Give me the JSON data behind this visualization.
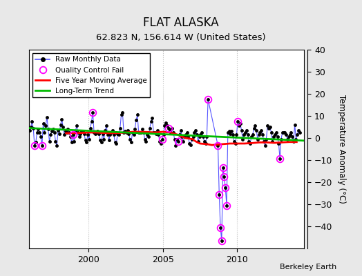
{
  "title": "FLAT ALASKA",
  "subtitle": "62.823 N, 156.614 W (United States)",
  "ylabel": "Temperature Anomaly (°C)",
  "attribution": "Berkeley Earth",
  "ylim": [
    -50,
    40
  ],
  "yticks": [
    -40,
    -30,
    -20,
    -10,
    0,
    10,
    20,
    30,
    40
  ],
  "xlim_start": 1996.0,
  "xlim_end": 2014.5,
  "xticks": [
    2000,
    2005,
    2010
  ],
  "bg_color": "#e8e8e8",
  "plot_bg_color": "#ffffff",
  "grid_color": "#bbbbbb",
  "raw_color": "#5555ff",
  "raw_marker_color": "#000000",
  "qc_color": "#ff00ff",
  "ma_color": "#ff0000",
  "trend_color": "#00bb00",
  "raw_monthly_data": [
    [
      1996.042,
      3.5
    ],
    [
      1996.125,
      5.0
    ],
    [
      1996.208,
      7.5
    ],
    [
      1996.292,
      4.5
    ],
    [
      1996.375,
      -3.5
    ],
    [
      1996.458,
      -2.0
    ],
    [
      1996.542,
      2.5
    ],
    [
      1996.625,
      4.0
    ],
    [
      1996.708,
      2.5
    ],
    [
      1996.792,
      0.5
    ],
    [
      1996.875,
      -3.5
    ],
    [
      1996.958,
      6.5
    ],
    [
      1997.042,
      2.5
    ],
    [
      1997.125,
      5.5
    ],
    [
      1997.208,
      9.5
    ],
    [
      1997.292,
      4.0
    ],
    [
      1997.375,
      -1.5
    ],
    [
      1997.458,
      1.5
    ],
    [
      1997.542,
      3.0
    ],
    [
      1997.625,
      4.0
    ],
    [
      1997.708,
      2.5
    ],
    [
      1997.792,
      -1.5
    ],
    [
      1997.875,
      -3.5
    ],
    [
      1997.958,
      3.5
    ],
    [
      1998.042,
      2.0
    ],
    [
      1998.125,
      6.0
    ],
    [
      1998.208,
      8.5
    ],
    [
      1998.292,
      5.0
    ],
    [
      1998.375,
      1.5
    ],
    [
      1998.458,
      3.0
    ],
    [
      1998.542,
      2.5
    ],
    [
      1998.625,
      4.0
    ],
    [
      1998.708,
      2.5
    ],
    [
      1998.792,
      0.5
    ],
    [
      1998.875,
      -2.0
    ],
    [
      1998.958,
      1.5
    ],
    [
      1999.042,
      -1.5
    ],
    [
      1999.125,
      3.0
    ],
    [
      1999.208,
      5.5
    ],
    [
      1999.292,
      2.5
    ],
    [
      1999.375,
      0.5
    ],
    [
      1999.458,
      2.0
    ],
    [
      1999.542,
      3.0
    ],
    [
      1999.625,
      3.0
    ],
    [
      1999.708,
      2.0
    ],
    [
      1999.792,
      -1.0
    ],
    [
      1999.875,
      -2.0
    ],
    [
      1999.958,
      1.5
    ],
    [
      2000.042,
      -0.5
    ],
    [
      2000.125,
      4.5
    ],
    [
      2000.208,
      7.5
    ],
    [
      2000.292,
      11.5
    ],
    [
      2000.375,
      2.5
    ],
    [
      2000.458,
      2.0
    ],
    [
      2000.542,
      2.5
    ],
    [
      2000.625,
      3.0
    ],
    [
      2000.708,
      2.0
    ],
    [
      2000.792,
      -1.0
    ],
    [
      2000.875,
      -2.0
    ],
    [
      2000.958,
      2.0
    ],
    [
      2001.042,
      -0.5
    ],
    [
      2001.125,
      3.5
    ],
    [
      2001.208,
      5.5
    ],
    [
      2001.292,
      1.5
    ],
    [
      2001.375,
      -1.0
    ],
    [
      2001.458,
      1.5
    ],
    [
      2001.542,
      2.5
    ],
    [
      2001.625,
      3.5
    ],
    [
      2001.708,
      1.5
    ],
    [
      2001.792,
      -2.0
    ],
    [
      2001.875,
      -2.5
    ],
    [
      2001.958,
      2.0
    ],
    [
      2002.042,
      1.5
    ],
    [
      2002.125,
      4.5
    ],
    [
      2002.208,
      10.5
    ],
    [
      2002.292,
      11.5
    ],
    [
      2002.375,
      2.5
    ],
    [
      2002.458,
      3.0
    ],
    [
      2002.542,
      2.5
    ],
    [
      2002.625,
      3.5
    ],
    [
      2002.708,
      2.0
    ],
    [
      2002.792,
      -0.5
    ],
    [
      2002.875,
      -2.0
    ],
    [
      2002.958,
      2.5
    ],
    [
      2003.042,
      1.5
    ],
    [
      2003.125,
      4.0
    ],
    [
      2003.208,
      8.0
    ],
    [
      2003.292,
      10.5
    ],
    [
      2003.375,
      2.5
    ],
    [
      2003.458,
      2.5
    ],
    [
      2003.542,
      2.5
    ],
    [
      2003.625,
      4.0
    ],
    [
      2003.708,
      2.5
    ],
    [
      2003.792,
      -0.5
    ],
    [
      2003.875,
      -1.5
    ],
    [
      2003.958,
      1.5
    ],
    [
      2004.042,
      0.5
    ],
    [
      2004.125,
      4.5
    ],
    [
      2004.208,
      7.5
    ],
    [
      2004.292,
      9.0
    ],
    [
      2004.375,
      2.5
    ],
    [
      2004.458,
      2.5
    ],
    [
      2004.542,
      2.0
    ],
    [
      2004.625,
      3.5
    ],
    [
      2004.708,
      1.5
    ],
    [
      2004.792,
      -1.5
    ],
    [
      2004.875,
      -2.5
    ],
    [
      2004.958,
      -0.5
    ],
    [
      2005.042,
      1.5
    ],
    [
      2005.125,
      5.5
    ],
    [
      2005.208,
      7.0
    ],
    [
      2005.292,
      5.5
    ],
    [
      2005.375,
      4.5
    ],
    [
      2005.458,
      3.5
    ],
    [
      2005.542,
      2.5
    ],
    [
      2005.625,
      4.5
    ],
    [
      2005.708,
      2.5
    ],
    [
      2005.792,
      -0.5
    ],
    [
      2005.875,
      -3.5
    ],
    [
      2005.958,
      -0.5
    ],
    [
      2006.042,
      -1.5
    ],
    [
      2006.125,
      1.5
    ],
    [
      2006.208,
      3.5
    ],
    [
      2006.292,
      0.5
    ],
    [
      2006.375,
      -1.5
    ],
    [
      2006.458,
      0.5
    ],
    [
      2006.542,
      1.5
    ],
    [
      2006.625,
      2.5
    ],
    [
      2006.708,
      0.5
    ],
    [
      2006.792,
      -2.5
    ],
    [
      2006.875,
      -3.0
    ],
    [
      2006.958,
      -0.5
    ],
    [
      2007.042,
      0.5
    ],
    [
      2007.125,
      2.5
    ],
    [
      2007.208,
      3.5
    ],
    [
      2007.292,
      1.5
    ],
    [
      2007.375,
      -1.5
    ],
    [
      2007.458,
      0.5
    ],
    [
      2007.542,
      1.5
    ],
    [
      2007.625,
      2.5
    ],
    [
      2007.708,
      0.5
    ],
    [
      2007.792,
      -1.5
    ],
    [
      2007.875,
      -2.5
    ],
    [
      2007.958,
      0.5
    ],
    [
      2008.042,
      17.5
    ],
    [
      2008.708,
      -3.5
    ],
    [
      2008.792,
      -25.5
    ],
    [
      2008.875,
      -40.5
    ],
    [
      2008.958,
      -46.5
    ],
    [
      2009.042,
      -13.5
    ],
    [
      2009.125,
      -17.5
    ],
    [
      2009.208,
      -22.5
    ],
    [
      2009.292,
      -30.5
    ],
    [
      2009.375,
      2.5
    ],
    [
      2009.458,
      3.0
    ],
    [
      2009.542,
      2.0
    ],
    [
      2009.625,
      3.0
    ],
    [
      2009.708,
      1.5
    ],
    [
      2009.792,
      -1.5
    ],
    [
      2009.875,
      -2.5
    ],
    [
      2009.958,
      1.5
    ],
    [
      2010.042,
      7.5
    ],
    [
      2010.125,
      5.5
    ],
    [
      2010.208,
      6.5
    ],
    [
      2010.292,
      3.5
    ],
    [
      2010.375,
      -0.5
    ],
    [
      2010.458,
      1.5
    ],
    [
      2010.542,
      2.5
    ],
    [
      2010.625,
      3.5
    ],
    [
      2010.708,
      1.5
    ],
    [
      2010.792,
      -1.5
    ],
    [
      2010.875,
      -2.5
    ],
    [
      2010.958,
      0.5
    ],
    [
      2011.042,
      1.5
    ],
    [
      2011.125,
      4.5
    ],
    [
      2011.208,
      5.5
    ],
    [
      2011.292,
      3.5
    ],
    [
      2011.375,
      -0.5
    ],
    [
      2011.458,
      1.5
    ],
    [
      2011.542,
      2.5
    ],
    [
      2011.625,
      3.5
    ],
    [
      2011.708,
      1.5
    ],
    [
      2011.792,
      -1.5
    ],
    [
      2011.875,
      -3.5
    ],
    [
      2011.958,
      -0.5
    ],
    [
      2012.042,
      5.5
    ],
    [
      2012.125,
      4.5
    ],
    [
      2012.208,
      5.0
    ],
    [
      2012.292,
      2.5
    ],
    [
      2012.375,
      -1.5
    ],
    [
      2012.458,
      0.5
    ],
    [
      2012.542,
      1.5
    ],
    [
      2012.625,
      2.5
    ],
    [
      2012.708,
      0.5
    ],
    [
      2012.792,
      -2.5
    ],
    [
      2012.875,
      -9.5
    ],
    [
      2012.958,
      -0.5
    ],
    [
      2013.042,
      2.5
    ],
    [
      2013.125,
      2.5
    ],
    [
      2013.208,
      2.5
    ],
    [
      2013.292,
      1.5
    ],
    [
      2013.375,
      -0.5
    ],
    [
      2013.458,
      0.5
    ],
    [
      2013.542,
      1.5
    ],
    [
      2013.625,
      2.5
    ],
    [
      2013.708,
      0.5
    ],
    [
      2013.792,
      -1.5
    ],
    [
      2013.875,
      6.0
    ],
    [
      2013.958,
      -0.5
    ],
    [
      2014.042,
      1.5
    ],
    [
      2014.125,
      3.5
    ],
    [
      2014.208,
      2.5
    ]
  ],
  "qc_fail_points": [
    [
      1996.375,
      -3.5
    ],
    [
      1996.875,
      -3.5
    ],
    [
      1998.958,
      1.5
    ],
    [
      2000.292,
      11.5
    ],
    [
      2004.958,
      -0.5
    ],
    [
      2005.375,
      4.5
    ],
    [
      2006.042,
      -1.5
    ],
    [
      2008.042,
      17.5
    ],
    [
      2008.708,
      -3.5
    ],
    [
      2008.792,
      -25.5
    ],
    [
      2008.875,
      -40.5
    ],
    [
      2008.958,
      -46.5
    ],
    [
      2009.042,
      -13.5
    ],
    [
      2009.125,
      -17.5
    ],
    [
      2009.208,
      -22.5
    ],
    [
      2009.292,
      -30.5
    ],
    [
      2010.042,
      7.5
    ],
    [
      2012.875,
      -9.5
    ]
  ],
  "moving_avg": [
    [
      1998.5,
      2.2
    ],
    [
      1999.0,
      2.2
    ],
    [
      1999.5,
      2.3
    ],
    [
      2000.0,
      2.5
    ],
    [
      2000.5,
      2.5
    ],
    [
      2001.0,
      2.3
    ],
    [
      2001.5,
      2.2
    ],
    [
      2002.0,
      2.3
    ],
    [
      2002.5,
      2.5
    ],
    [
      2003.0,
      2.8
    ],
    [
      2003.5,
      2.8
    ],
    [
      2004.0,
      2.7
    ],
    [
      2004.5,
      2.5
    ],
    [
      2005.0,
      2.8
    ],
    [
      2005.5,
      2.5
    ],
    [
      2006.0,
      1.5
    ],
    [
      2006.5,
      0.0
    ],
    [
      2007.0,
      -0.5
    ],
    [
      2007.2,
      -1.5
    ],
    [
      2007.5,
      -2.5
    ],
    [
      2008.0,
      -2.8
    ],
    [
      2008.3,
      -3.2
    ],
    [
      2009.5,
      -2.5
    ],
    [
      2010.0,
      -2.5
    ],
    [
      2010.5,
      -2.5
    ],
    [
      2011.0,
      -2.3
    ],
    [
      2011.5,
      -2.0
    ],
    [
      2012.0,
      -2.0
    ],
    [
      2012.5,
      -2.2
    ],
    [
      2013.0,
      -2.0
    ],
    [
      2013.5,
      -1.8
    ],
    [
      2014.0,
      -1.8
    ]
  ],
  "trend_line_x": [
    1996.0,
    2014.5
  ],
  "trend_line_y": [
    4.5,
    -1.2
  ]
}
